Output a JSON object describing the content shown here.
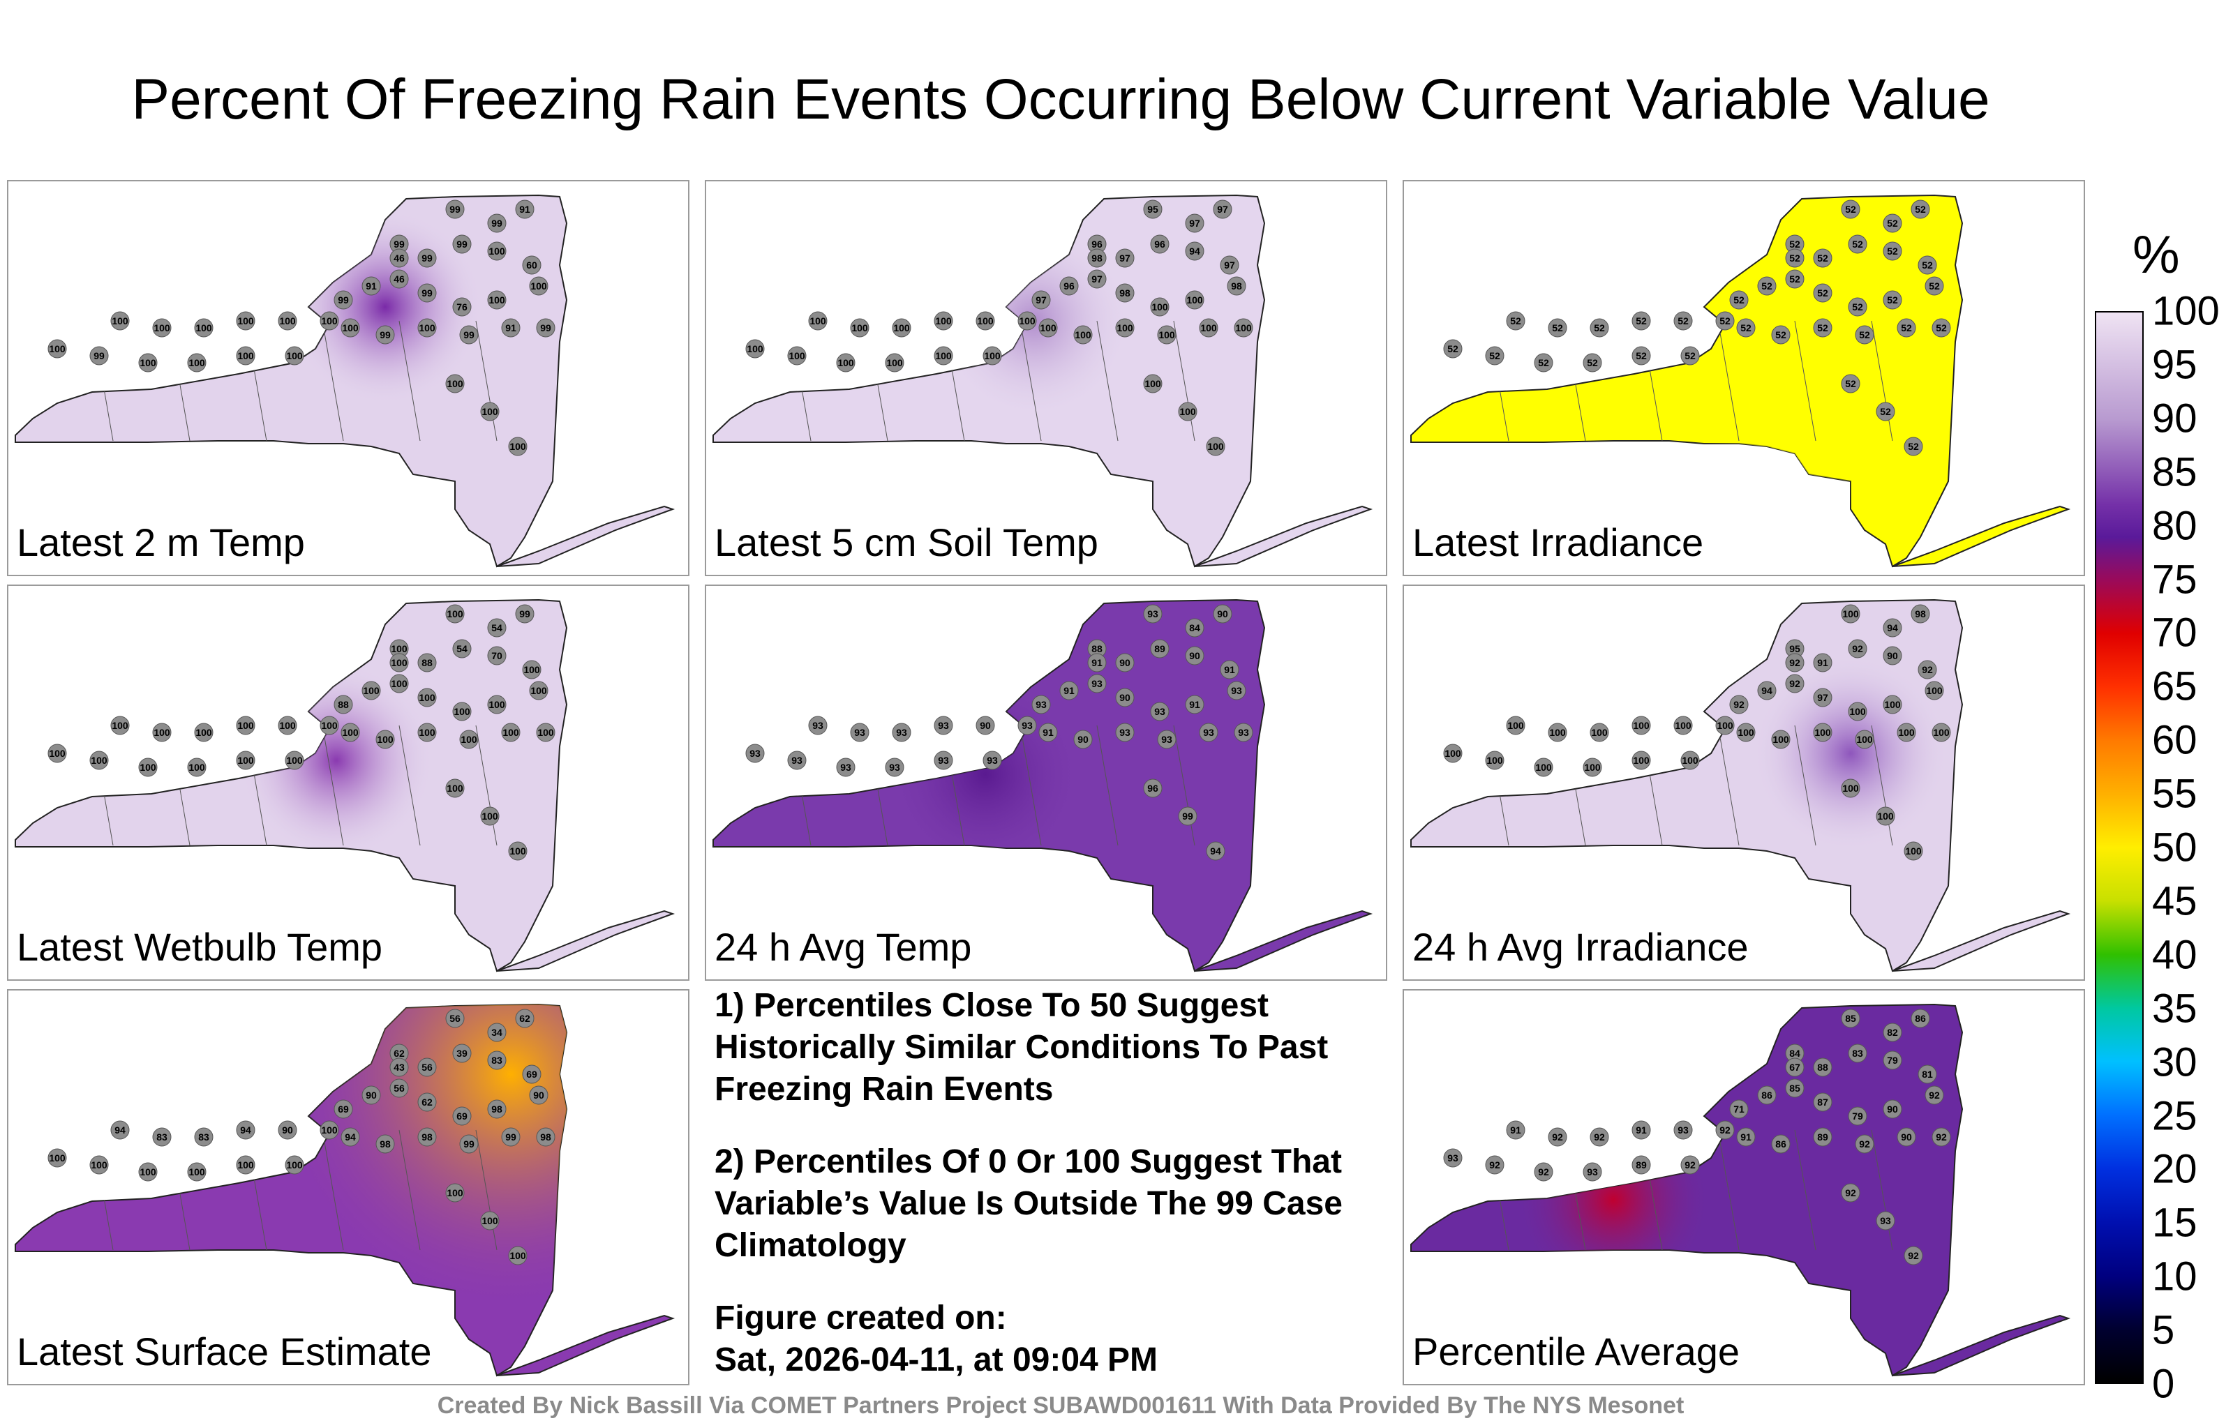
{
  "title": "Percent Of Freezing Rain Events Occurring Below Current Variable Value",
  "colorbar": {
    "unit": "%",
    "ticks": [
      "100",
      "95",
      "90",
      "85",
      "80",
      "75",
      "70",
      "65",
      "60",
      "55",
      "50",
      "45",
      "40",
      "35",
      "30",
      "25",
      "20",
      "15",
      "10",
      "5",
      "0"
    ]
  },
  "panels": [
    {
      "label": "Latest 2 m Temp",
      "base_color": "#e2d3ec",
      "hot_color": "#7a2aa8",
      "stations": [
        "99",
        "91",
        "99",
        "99",
        "46",
        "99",
        "99",
        "100",
        "60",
        "99",
        "91",
        "46",
        "99",
        "76",
        "100",
        "100",
        "100",
        "99",
        "100",
        "99",
        "91",
        "99",
        "100",
        "100",
        "100",
        "100",
        "100",
        "100",
        "100",
        "99",
        "100",
        "100",
        "100",
        "100",
        "100",
        "100",
        "100"
      ]
    },
    {
      "label": "Latest 5 cm Soil Temp",
      "base_color": "#e4d6ee",
      "hot_color": "#b08ccc",
      "stations": [
        "95",
        "97",
        "97",
        "96",
        "98",
        "97",
        "96",
        "94",
        "97",
        "97",
        "96",
        "97",
        "98",
        "100",
        "100",
        "98",
        "100",
        "100",
        "100",
        "100",
        "100",
        "100",
        "100",
        "100",
        "100",
        "100",
        "100",
        "100",
        "100",
        "100",
        "100",
        "100",
        "100",
        "100",
        "100",
        "100",
        "100"
      ]
    },
    {
      "label": "Latest Irradiance",
      "base_color": "#ffff00",
      "hot_color": "#ffff00",
      "stations": [
        "52",
        "52",
        "52",
        "52",
        "52",
        "52",
        "52",
        "52",
        "52",
        "52",
        "52",
        "52",
        "52",
        "52",
        "52",
        "52",
        "52",
        "52",
        "52",
        "52",
        "52",
        "52",
        "52",
        "52",
        "52",
        "52",
        "52",
        "52",
        "52",
        "52",
        "52",
        "52",
        "52",
        "52",
        "52",
        "52",
        "52"
      ]
    },
    {
      "label": "Latest Wetbulb Temp",
      "base_color": "#e2d3ec",
      "hot_color": "#8a3ab0",
      "stations": [
        "100",
        "99",
        "54",
        "100",
        "100",
        "88",
        "54",
        "70",
        "100",
        "88",
        "100",
        "100",
        "100",
        "100",
        "100",
        "100",
        "100",
        "100",
        "100",
        "100",
        "100",
        "100",
        "100",
        "100",
        "100",
        "100",
        "100",
        "100",
        "100",
        "100",
        "100",
        "100",
        "100",
        "100",
        "100",
        "100",
        "100"
      ]
    },
    {
      "label": "24 h Avg Temp",
      "base_color": "#7a3aac",
      "hot_color": "#5a1a90",
      "stations": [
        "93",
        "90",
        "84",
        "88",
        "91",
        "90",
        "89",
        "90",
        "91",
        "93",
        "91",
        "93",
        "90",
        "93",
        "91",
        "93",
        "91",
        "90",
        "93",
        "93",
        "93",
        "93",
        "93",
        "93",
        "93",
        "93",
        "90",
        "93",
        "93",
        "93",
        "93",
        "93",
        "93",
        "93",
        "96",
        "99",
        "94"
      ]
    },
    {
      "label": "24 h Avg Irradiance",
      "base_color": "#e2d3ec",
      "hot_color": "#8e56bc",
      "stations": [
        "100",
        "98",
        "94",
        "95",
        "92",
        "91",
        "92",
        "90",
        "92",
        "92",
        "94",
        "92",
        "97",
        "100",
        "100",
        "100",
        "100",
        "100",
        "100",
        "100",
        "100",
        "100",
        "100",
        "100",
        "100",
        "100",
        "100",
        "100",
        "100",
        "100",
        "100",
        "100",
        "100",
        "100",
        "100",
        "100",
        "100"
      ]
    },
    {
      "label": "Latest Surface Estimate",
      "base_color": "#8a3ab0",
      "hot_color": "#ffb000",
      "stations": [
        "56",
        "62",
        "34",
        "62",
        "43",
        "56",
        "39",
        "83",
        "69",
        "69",
        "90",
        "56",
        "62",
        "69",
        "98",
        "90",
        "94",
        "98",
        "98",
        "99",
        "99",
        "98",
        "94",
        "83",
        "83",
        "94",
        "90",
        "100",
        "100",
        "100",
        "100",
        "100",
        "100",
        "100",
        "100",
        "100",
        "100"
      ]
    },
    {
      "label": "Percentile Average",
      "base_color": "#6a2aa0",
      "hot_color": "#c00030",
      "stations": [
        "85",
        "86",
        "82",
        "84",
        "67",
        "88",
        "83",
        "79",
        "81",
        "71",
        "86",
        "85",
        "87",
        "79",
        "90",
        "92",
        "91",
        "86",
        "89",
        "92",
        "90",
        "92",
        "91",
        "92",
        "92",
        "91",
        "93",
        "92",
        "93",
        "92",
        "92",
        "93",
        "89",
        "92",
        "92",
        "93",
        "92"
      ]
    }
  ],
  "notes": [
    "1) Percentiles Close To 50 Suggest Historically Similar Conditions To Past Freezing Rain Events",
    "2) Percentiles Of 0 Or 100 Suggest That Variable’s Value Is Outside The 99 Case Climatology",
    "Figure created on:",
    "Sat, 2026-04-11, at 09:04 PM"
  ],
  "credit": "Created By Nick Bassill Via COMET Partners Project SUBAWD001611 With Data Provided By The NYS Mesonet"
}
